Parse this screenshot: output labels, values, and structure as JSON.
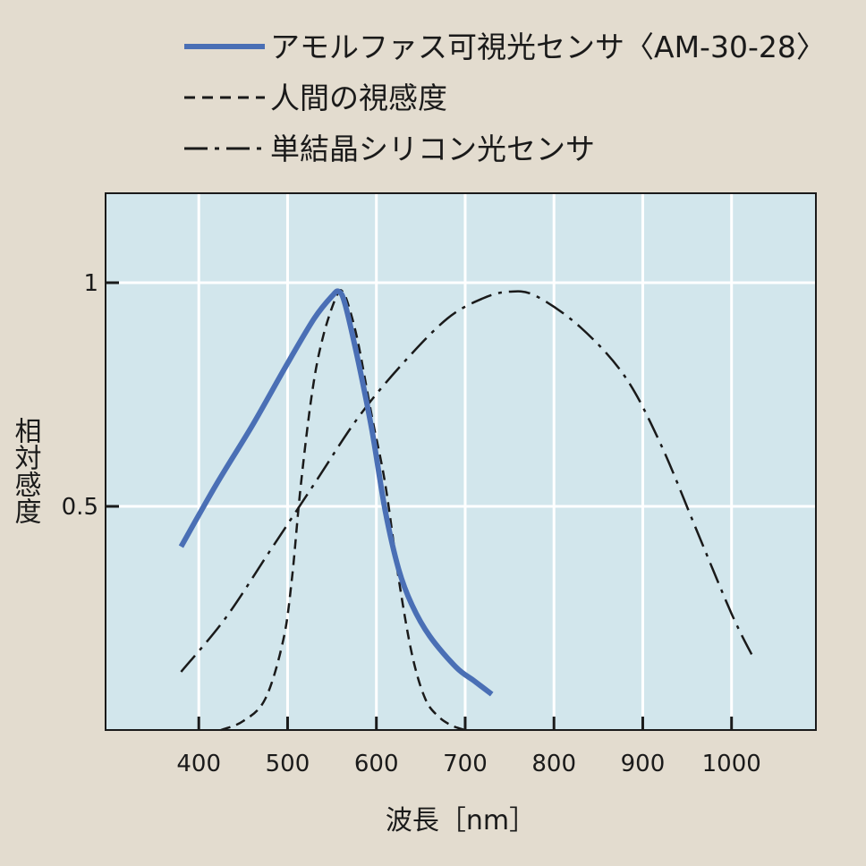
{
  "chart_data": {
    "type": "line",
    "title": "",
    "xlabel": "波長［nm］",
    "ylabel": "相対感度",
    "xlim": [
      295,
      1095
    ],
    "ylim": [
      0,
      1.2
    ],
    "xticks": [
      400,
      500,
      600,
      700,
      800,
      900,
      1000
    ],
    "xtick_labels": [
      "400",
      "500",
      "600",
      "700",
      "800",
      "900",
      "1000"
    ],
    "yticks": [
      0.5,
      1
    ],
    "ytick_labels": [
      "0.5",
      "1"
    ],
    "grid": true,
    "legend_position": "top",
    "colors": {
      "background": "#e3dccf",
      "plot_area": "#d2e6ec",
      "grid": "#ffffff",
      "amorphous": "#4a6fb5",
      "human": "#1a1a1a",
      "silicon": "#1a1a1a"
    },
    "series": [
      {
        "id": "amorphous",
        "name": "アモルファス可視光センサ〈AM-30-28〉",
        "style": "solid",
        "points": [
          [
            380,
            0.41
          ],
          [
            420,
            0.55
          ],
          [
            460,
            0.68
          ],
          [
            500,
            0.82
          ],
          [
            530,
            0.92
          ],
          [
            550,
            0.97
          ],
          [
            558,
            0.98
          ],
          [
            565,
            0.95
          ],
          [
            580,
            0.82
          ],
          [
            595,
            0.67
          ],
          [
            610,
            0.49
          ],
          [
            625,
            0.36
          ],
          [
            640,
            0.28
          ],
          [
            660,
            0.21
          ],
          [
            690,
            0.14
          ],
          [
            710,
            0.11
          ],
          [
            730,
            0.08
          ]
        ]
      },
      {
        "id": "human",
        "name": "人間の視感度",
        "style": "dashed",
        "points": [
          [
            425,
            0.0
          ],
          [
            450,
            0.02
          ],
          [
            475,
            0.07
          ],
          [
            495,
            0.2
          ],
          [
            505,
            0.34
          ],
          [
            515,
            0.55
          ],
          [
            528,
            0.76
          ],
          [
            540,
            0.88
          ],
          [
            555,
            0.97
          ],
          [
            562,
            0.98
          ],
          [
            570,
            0.94
          ],
          [
            580,
            0.86
          ],
          [
            595,
            0.7
          ],
          [
            610,
            0.55
          ],
          [
            625,
            0.34
          ],
          [
            640,
            0.17
          ],
          [
            655,
            0.07
          ],
          [
            670,
            0.03
          ],
          [
            685,
            0.01
          ],
          [
            700,
            0.0
          ]
        ]
      },
      {
        "id": "silicon",
        "name": "単結晶シリコン光センサ",
        "style": "dashdot",
        "points": [
          [
            380,
            0.13
          ],
          [
            430,
            0.25
          ],
          [
            480,
            0.4
          ],
          [
            530,
            0.55
          ],
          [
            580,
            0.7
          ],
          [
            630,
            0.82
          ],
          [
            680,
            0.92
          ],
          [
            720,
            0.965
          ],
          [
            750,
            0.98
          ],
          [
            780,
            0.97
          ],
          [
            830,
            0.9
          ],
          [
            880,
            0.79
          ],
          [
            920,
            0.64
          ],
          [
            960,
            0.45
          ],
          [
            1000,
            0.26
          ],
          [
            1025,
            0.16
          ]
        ]
      }
    ]
  }
}
